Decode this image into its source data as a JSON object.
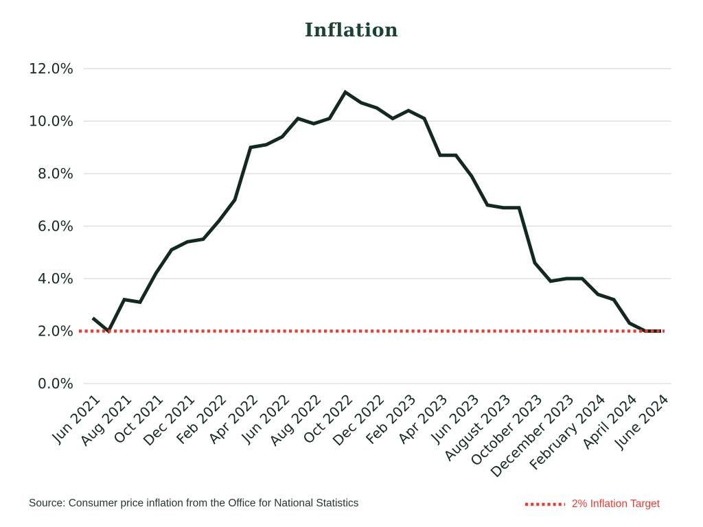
{
  "title": "Inflation",
  "footer": {
    "source_note": "Source: Consumer price inflation from the Office for National Statistics",
    "legend_label": "2% Inflation Target"
  },
  "colors": {
    "line": "#13291f",
    "target_red": "#ee3b31",
    "grid": "#d9d9d9",
    "title_green": "#1c4233",
    "axis_text": "#16291f",
    "source_text": "#25382f"
  },
  "chart_data": {
    "type": "line",
    "title": "Inflation",
    "xlabel": "",
    "ylabel": "",
    "grid": true,
    "legend_position": "bottom-right",
    "ylim": [
      0,
      12
    ],
    "y_ticks": [
      0,
      2,
      4,
      6,
      8,
      10,
      12
    ],
    "y_tick_labels": [
      "0.0%",
      "2.0%",
      "4.0%",
      "6.0%",
      "8.0%",
      "10.0%",
      "12.0%"
    ],
    "x": [
      "Jun 2021",
      "Jul 2021",
      "Aug 2021",
      "Sep 2021",
      "Oct 2021",
      "Nov 2021",
      "Dec 2021",
      "Jan 2022",
      "Feb 2022",
      "Mar 2022",
      "Apr 2022",
      "May 2022",
      "Jun 2022",
      "Jul 2022",
      "Aug 2022",
      "Sep 2022",
      "Oct 2022",
      "Nov 2022",
      "Dec 2022",
      "Jan 2023",
      "Feb 2023",
      "Mar 2023",
      "Apr 2023",
      "May 2023",
      "Jun 2023",
      "Jul 2023",
      "Aug 2023",
      "Sep 2023",
      "Oct 2023",
      "Nov 2023",
      "Dec 2023",
      "Jan 2024",
      "Feb 2024",
      "Mar 2024",
      "Apr 2024",
      "May 2024",
      "Jun 2024"
    ],
    "x_tick_labels": [
      "Jun 2021",
      "Aug 2021",
      "Oct 2021",
      "Dec 2021",
      "Feb 2022",
      "Apr 2022",
      "Jun 2022",
      "Aug 2022",
      "Oct 2022",
      "Dec 2022",
      "Feb 2023",
      "Apr 2023",
      "Jun 2023",
      "August 2023",
      "October 2023",
      "December 2023",
      "February 2024",
      "April 2024",
      "June 2024"
    ],
    "x_tick_every": 2,
    "series": [
      {
        "name": "Consumer price inflation",
        "values": [
          2.5,
          2.0,
          3.2,
          3.1,
          4.2,
          5.1,
          5.4,
          5.5,
          6.2,
          7.0,
          9.0,
          9.1,
          9.4,
          10.1,
          9.9,
          10.1,
          11.1,
          10.7,
          10.5,
          10.1,
          10.4,
          10.1,
          8.7,
          8.7,
          7.9,
          6.8,
          6.7,
          6.7,
          4.6,
          3.9,
          4.0,
          4.0,
          3.4,
          3.2,
          2.3,
          2.0,
          2.0
        ]
      }
    ],
    "target_line": {
      "value": 2.0,
      "style": "dotted",
      "label": "2% Inflation Target"
    }
  }
}
